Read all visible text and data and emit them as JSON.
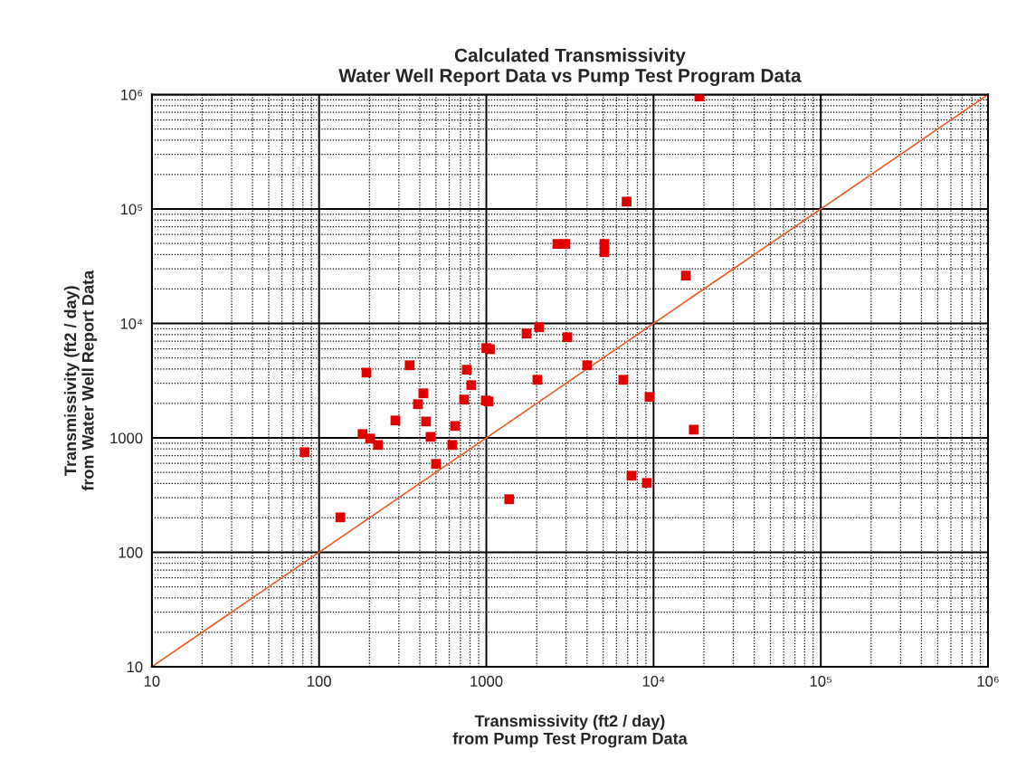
{
  "chart_data": {
    "type": "scatter",
    "title": "Calculated Transmissivity\nWater Well Report Data vs Pump Test Program Data",
    "xlabel": "Transmissivity (ft2 / day)\nfrom Pump Test Program Data",
    "ylabel": "Transmissivity (ft2 / day)\nfrom Water Well Report Data",
    "log": "xy",
    "grid": true,
    "marker": "square",
    "xlim": [
      10,
      1000000
    ],
    "ylim": [
      10,
      1000000
    ],
    "xticks": [
      10,
      100,
      1000,
      {
        "value": 10000,
        "label": "10⁴"
      },
      {
        "value": 100000,
        "label": "10⁵"
      },
      {
        "value": 1000000,
        "label": "10⁶"
      }
    ],
    "yticks": [
      10,
      100,
      1000,
      {
        "value": 10000,
        "label": "10⁴"
      },
      {
        "value": 100000,
        "label": "10⁵"
      },
      {
        "value": 1000000,
        "label": "10⁶"
      }
    ],
    "series": [
      {
        "color": "#e00000",
        "x": [
          82,
          134,
          182,
          192,
          202,
          225,
          286,
          348,
          390,
          420,
          436,
          464,
          500,
          626,
          650,
          736,
          764,
          813,
          993,
          1030,
          1000,
          1050,
          1370,
          1740,
          2070,
          2020,
          2660,
          2970,
          3050,
          5080,
          5080,
          6900,
          15600,
          18800,
          4010,
          6590,
          9460,
          17400,
          7380,
          9120
        ],
        "values": [
          750,
          202,
          1080,
          3720,
          986,
          867,
          1420,
          4310,
          1970,
          2450,
          1390,
          1020,
          592,
          867,
          1270,
          2160,
          3940,
          2890,
          2120,
          2080,
          6090,
          5960,
          291,
          8150,
          9260,
          3220,
          49500,
          49500,
          7580,
          49500,
          42000,
          116000,
          26200,
          964000,
          4310,
          3220,
          2280,
          1180,
          467,
          404
        ]
      },
      {
        "type": "line",
        "color": "#e8602c",
        "marker": "none",
        "line_style": "solid",
        "x": [
          10,
          1000000
        ],
        "values": [
          10,
          1000000
        ]
      }
    ]
  }
}
